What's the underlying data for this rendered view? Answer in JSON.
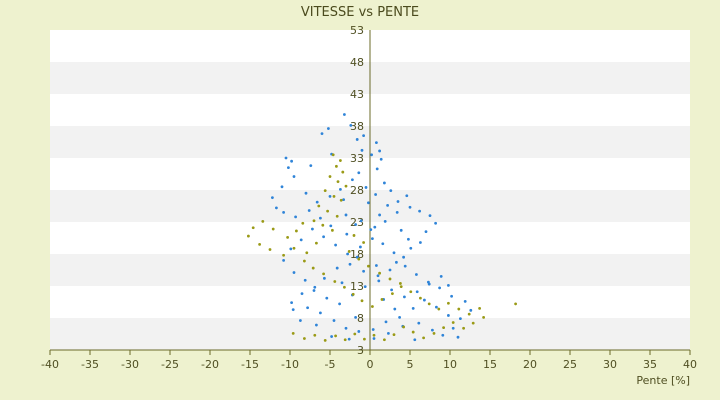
{
  "chart_data": {
    "type": "scatter",
    "title": "VITESSE vs PENTE",
    "xlabel": "Pente [%]",
    "ylabel": "",
    "xlim": [
      -40,
      40
    ],
    "ylim": [
      3,
      53
    ],
    "x_ticks": [
      -40,
      -35,
      -30,
      -25,
      -20,
      -15,
      -10,
      -5,
      0,
      5,
      10,
      15,
      20,
      25,
      30,
      35,
      40
    ],
    "x_tick_labels": [
      "-40",
      "-35",
      "-30",
      "-25",
      "-20",
      "-15",
      "-10",
      "-5",
      "0",
      "5",
      "10",
      "15",
      "20",
      "25",
      "30",
      "35",
      "40"
    ],
    "y_ticks": [
      3,
      8,
      13,
      18,
      23,
      28,
      33,
      38,
      43,
      48,
      53
    ],
    "y_tick_labels": [
      "3",
      "8",
      "13",
      "18",
      "23",
      "28",
      "33",
      "38",
      "43",
      "48",
      "53"
    ],
    "grid": "horizontal alternating bands",
    "legend": "none",
    "colors": {
      "background": "#eef2cf",
      "plot_bg": "#ffffff",
      "band": "#f2f2f2",
      "axis": "#6b6b2a",
      "series_blue": "#2f84d8",
      "series_olive": "#9a9a16"
    },
    "series": [
      {
        "color": "#2f84d8",
        "points": [
          [
            -10.5,
            33.0
          ],
          [
            -9.8,
            32.5
          ],
          [
            -10.2,
            31.5
          ],
          [
            -6.0,
            36.8
          ],
          [
            -5.2,
            37.6
          ],
          [
            -3.2,
            39.8
          ],
          [
            -2.4,
            38.1
          ],
          [
            -1.0,
            34.2
          ],
          [
            0.2,
            33.5
          ],
          [
            1.4,
            32.8
          ],
          [
            -4.8,
            33.6
          ],
          [
            -7.4,
            31.8
          ],
          [
            -9.5,
            30.1
          ],
          [
            -11.0,
            28.5
          ],
          [
            -12.2,
            26.8
          ],
          [
            -11.7,
            25.2
          ],
          [
            -10.8,
            24.5
          ],
          [
            -9.3,
            23.8
          ],
          [
            -7.6,
            24.8
          ],
          [
            -6.2,
            23.6
          ],
          [
            -4.9,
            22.4
          ],
          [
            -3.0,
            24.1
          ],
          [
            -1.8,
            22.6
          ],
          [
            0.1,
            21.8
          ],
          [
            1.9,
            23.1
          ],
          [
            3.4,
            24.5
          ],
          [
            5.0,
            25.3
          ],
          [
            6.2,
            24.7
          ],
          [
            7.5,
            24.0
          ],
          [
            8.2,
            22.8
          ],
          [
            7.0,
            21.5
          ],
          [
            6.3,
            19.8
          ],
          [
            5.1,
            18.9
          ],
          [
            4.2,
            17.5
          ],
          [
            3.3,
            16.7
          ],
          [
            2.5,
            15.5
          ],
          [
            1.0,
            14.6
          ],
          [
            -0.8,
            15.3
          ],
          [
            -2.5,
            16.4
          ],
          [
            -4.1,
            15.8
          ],
          [
            -5.7,
            14.2
          ],
          [
            -7.0,
            12.3
          ],
          [
            -8.5,
            11.8
          ],
          [
            -9.8,
            10.4
          ],
          [
            -7.8,
            9.6
          ],
          [
            -6.2,
            8.8
          ],
          [
            -4.5,
            7.6
          ],
          [
            -3.0,
            6.4
          ],
          [
            -1.4,
            5.9
          ],
          [
            0.4,
            6.2
          ],
          [
            2.0,
            7.4
          ],
          [
            3.7,
            8.1
          ],
          [
            5.4,
            9.5
          ],
          [
            6.8,
            10.8
          ],
          [
            8.3,
            9.7
          ],
          [
            9.8,
            8.4
          ],
          [
            11.3,
            7.9
          ],
          [
            12.6,
            9.2
          ],
          [
            11.9,
            10.6
          ],
          [
            10.2,
            11.4
          ],
          [
            8.7,
            12.7
          ],
          [
            7.3,
            13.6
          ],
          [
            5.8,
            14.8
          ],
          [
            4.4,
            16.1
          ],
          [
            3.0,
            18.2
          ],
          [
            1.6,
            19.6
          ],
          [
            0.3,
            20.4
          ],
          [
            -1.2,
            19.1
          ],
          [
            -2.8,
            18.0
          ],
          [
            -4.3,
            19.4
          ],
          [
            -5.8,
            20.7
          ],
          [
            -7.2,
            21.9
          ],
          [
            -8.6,
            20.2
          ],
          [
            -9.9,
            18.8
          ],
          [
            -10.8,
            17.0
          ],
          [
            -9.5,
            15.1
          ],
          [
            -8.1,
            13.9
          ],
          [
            -6.9,
            12.8
          ],
          [
            -5.4,
            11.1
          ],
          [
            -3.8,
            10.2
          ],
          [
            -2.2,
            11.6
          ],
          [
            -0.6,
            12.9
          ],
          [
            1.1,
            13.8
          ],
          [
            2.7,
            12.4
          ],
          [
            4.3,
            11.3
          ],
          [
            5.9,
            12.1
          ],
          [
            7.4,
            13.3
          ],
          [
            8.9,
            14.5
          ],
          [
            9.8,
            13.1
          ],
          [
            0.7,
            27.3
          ],
          [
            -0.5,
            28.4
          ],
          [
            1.8,
            29.1
          ],
          [
            2.6,
            27.9
          ],
          [
            -2.2,
            29.6
          ],
          [
            -3.7,
            28.1
          ],
          [
            3.5,
            26.2
          ],
          [
            4.6,
            27.1
          ],
          [
            -1.4,
            30.7
          ],
          [
            0.9,
            31.3
          ],
          [
            -5.0,
            27.0
          ],
          [
            -6.6,
            26.1
          ],
          [
            -8.0,
            27.5
          ],
          [
            -3.3,
            26.5
          ],
          [
            2.2,
            25.6
          ],
          [
            -0.2,
            26.0
          ],
          [
            1.2,
            24.1
          ],
          [
            -1.1,
            23.2
          ],
          [
            0.6,
            22.2
          ],
          [
            -2.9,
            21.1
          ],
          [
            3.9,
            21.7
          ],
          [
            4.8,
            20.3
          ],
          [
            -1.6,
            17.5
          ],
          [
            0.8,
            16.2
          ],
          [
            -3.5,
            13.5
          ],
          [
            1.7,
            10.9
          ],
          [
            3.1,
            9.4
          ],
          [
            -1.8,
            8.1
          ],
          [
            0.5,
            4.8
          ],
          [
            2.3,
            5.6
          ],
          [
            4.1,
            6.7
          ],
          [
            6.1,
            7.2
          ],
          [
            7.8,
            6.1
          ],
          [
            9.1,
            5.3
          ],
          [
            10.4,
            6.4
          ],
          [
            -2.6,
            4.7
          ],
          [
            -4.8,
            5.1
          ],
          [
            -6.7,
            6.9
          ],
          [
            -8.7,
            7.6
          ],
          [
            -9.6,
            9.3
          ],
          [
            11.0,
            5.0
          ],
          [
            5.6,
            4.6
          ],
          [
            -0.8,
            36.5
          ],
          [
            0.8,
            35.4
          ],
          [
            -1.6,
            35.9
          ],
          [
            1.2,
            34.1
          ]
        ]
      },
      {
        "color": "#9a9a16",
        "points": [
          [
            -4.6,
            33.5
          ],
          [
            -3.7,
            32.6
          ],
          [
            -4.2,
            31.7
          ],
          [
            -3.4,
            30.8
          ],
          [
            -5.0,
            30.1
          ],
          [
            -4.0,
            29.3
          ],
          [
            -3.0,
            28.6
          ],
          [
            -5.6,
            27.9
          ],
          [
            -4.5,
            27.0
          ],
          [
            -3.6,
            26.4
          ],
          [
            -6.4,
            25.5
          ],
          [
            -5.3,
            24.7
          ],
          [
            -4.1,
            23.9
          ],
          [
            -7.0,
            23.2
          ],
          [
            -5.9,
            22.5
          ],
          [
            -4.7,
            21.7
          ],
          [
            -8.4,
            22.8
          ],
          [
            -9.2,
            21.6
          ],
          [
            -10.3,
            20.6
          ],
          [
            -12.1,
            21.9
          ],
          [
            -13.4,
            23.1
          ],
          [
            -14.6,
            22.1
          ],
          [
            -15.2,
            20.8
          ],
          [
            -13.8,
            19.5
          ],
          [
            -12.5,
            18.7
          ],
          [
            -10.8,
            17.8
          ],
          [
            -9.5,
            18.9
          ],
          [
            -8.2,
            16.9
          ],
          [
            -7.1,
            15.8
          ],
          [
            -5.8,
            14.9
          ],
          [
            -4.4,
            13.7
          ],
          [
            -3.2,
            12.8
          ],
          [
            -2.1,
            11.7
          ],
          [
            -1.0,
            10.7
          ],
          [
            0.3,
            9.8
          ],
          [
            1.5,
            10.9
          ],
          [
            2.8,
            11.8
          ],
          [
            3.9,
            12.9
          ],
          [
            5.1,
            12.1
          ],
          [
            6.3,
            11.1
          ],
          [
            7.4,
            10.2
          ],
          [
            8.6,
            9.4
          ],
          [
            9.8,
            10.3
          ],
          [
            11.1,
            9.4
          ],
          [
            12.4,
            8.6
          ],
          [
            13.7,
            9.5
          ],
          [
            14.2,
            8.1
          ],
          [
            12.9,
            7.2
          ],
          [
            11.7,
            6.4
          ],
          [
            10.4,
            7.3
          ],
          [
            9.2,
            6.5
          ],
          [
            8.0,
            5.6
          ],
          [
            6.7,
            4.9
          ],
          [
            5.4,
            5.8
          ],
          [
            4.2,
            6.6
          ],
          [
            3.0,
            5.4
          ],
          [
            1.8,
            4.6
          ],
          [
            0.5,
            5.3
          ],
          [
            -0.7,
            4.7
          ],
          [
            -1.9,
            5.5
          ],
          [
            -3.1,
            4.6
          ],
          [
            -4.3,
            5.2
          ],
          [
            -5.6,
            4.5
          ],
          [
            -6.9,
            5.3
          ],
          [
            -8.2,
            4.8
          ],
          [
            -9.6,
            5.6
          ],
          [
            -2.6,
            18.4
          ],
          [
            -1.4,
            17.2
          ],
          [
            -0.2,
            16.1
          ],
          [
            1.2,
            15.0
          ],
          [
            2.5,
            14.1
          ],
          [
            3.8,
            13.4
          ],
          [
            -6.7,
            19.7
          ],
          [
            -7.9,
            18.2
          ],
          [
            -2.0,
            20.9
          ],
          [
            -0.8,
            19.8
          ],
          [
            18.2,
            10.2
          ]
        ]
      }
    ]
  }
}
